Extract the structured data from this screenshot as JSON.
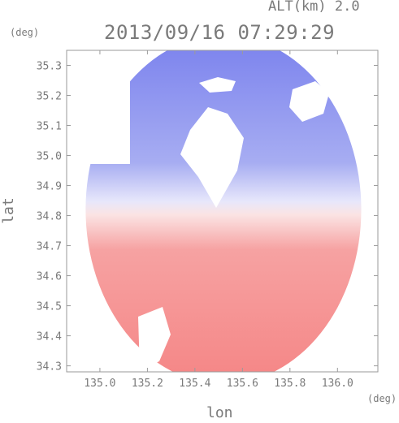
{
  "header": {
    "altitude": "ALT(km) 2.0",
    "datetime": "2013/09/16 07:29:29"
  },
  "chart_data": {
    "type": "heatmap",
    "title": "2013/09/16 07:29:29",
    "subtitle": "ALT(km) 2.0",
    "xlabel": "lon",
    "ylabel": "lat",
    "xunit": "(deg)",
    "yunit": "(deg)",
    "xlim": [
      134.86,
      136.17
    ],
    "ylim": [
      34.28,
      35.35
    ],
    "x_ticks": [
      135.0,
      135.2,
      135.4,
      135.6,
      135.8,
      136.0
    ],
    "x_tick_labels": [
      "135.0",
      "135.2",
      "135.4",
      "135.6",
      "135.8",
      "136.0"
    ],
    "y_ticks": [
      34.3,
      34.4,
      34.5,
      34.6,
      34.7,
      34.8,
      34.9,
      35.0,
      35.1,
      35.2,
      35.3
    ],
    "y_tick_labels": [
      "34.3",
      "34.4",
      "34.5",
      "34.6",
      "34.7",
      "34.8",
      "34.9",
      "35.0",
      "35.1",
      "35.2",
      "35.3"
    ],
    "radar_center": {
      "lon": 135.52,
      "lat": 34.82
    },
    "range_radius_deg": 0.58,
    "colors": {
      "approaching": "#7f86ee",
      "receding": "#f58a8a",
      "neutral": "#ffffff",
      "axes": "#9a9a9a"
    }
  }
}
